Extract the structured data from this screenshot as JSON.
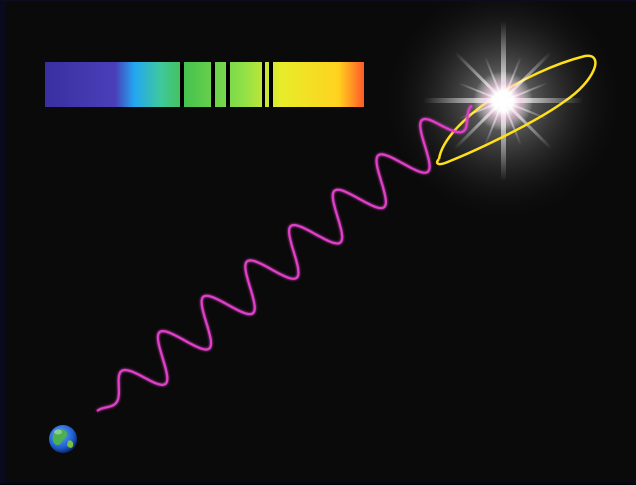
{
  "diagram": {
    "elements": [
      {
        "name": "spectrum-bar",
        "kind": "absorption spectrum"
      },
      {
        "name": "star",
        "kind": "bright star"
      },
      {
        "name": "planet-orbit",
        "kind": "elliptical orbit"
      },
      {
        "name": "light-wave",
        "kind": "sinusoidal light path from star to earth"
      },
      {
        "name": "earth-icon",
        "kind": "earth"
      }
    ],
    "absorption_line_count": 4,
    "colors": {
      "background": "#0a0a0a",
      "wave": "#e040c8",
      "orbit": "#ffe01a",
      "absorption_line": "#000000",
      "spectrum_stops": [
        "#3a2fa0",
        "#4a3fb8",
        "#23a6f2",
        "#3ec8a0",
        "#46c24e",
        "#8ee048",
        "#e8ec2a",
        "#ffd21e",
        "#ff5a28"
      ]
    }
  }
}
